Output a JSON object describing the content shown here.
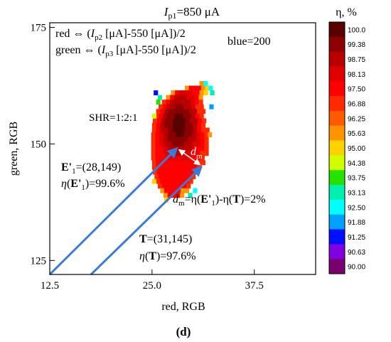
{
  "chart_data": {
    "type": "heatmap",
    "title": "I_p1=850 μA",
    "title_parts": {
      "main": "I",
      "sub": "p1",
      "rest": "=850 μA"
    },
    "xlabel": "red, RGB",
    "ylabel": "green, RGB",
    "xlim": [
      12.5,
      45
    ],
    "ylim": [
      122,
      176
    ],
    "x_ticks": [
      "12.5",
      "25.0",
      "37.5"
    ],
    "x_tick_values": [
      12.5,
      25.0,
      37.5
    ],
    "y_ticks": [
      "125",
      "150",
      "175"
    ],
    "y_tick_values": [
      125,
      150,
      175
    ],
    "grid": false,
    "legend_title": "η, %",
    "colorbar_labels": [
      "100.0",
      "99.38",
      "98.75",
      "98.13",
      "97.50",
      "96.88",
      "96.25",
      "95.63",
      "95.00",
      "94.38",
      "93.75",
      "93.13",
      "92.50",
      "91.88",
      "91.25",
      "90.63",
      "90.00"
    ],
    "colorbar_colors": [
      "#5a0000",
      "#8b0000",
      "#b80000",
      "#e00000",
      "#ff0000",
      "#ff2a00",
      "#ff5a00",
      "#ff9400",
      "#ffd200",
      "#d2ff00",
      "#23e400",
      "#00f0b0",
      "#00ffff",
      "#00a0ff",
      "#0010ff",
      "#8000e0",
      "#7a0070"
    ],
    "annotations": {
      "formula_red": {
        "pre": "red ⇔ (",
        "I": "I",
        "sub": "p2",
        "post": " [μA]-550 [μA])/2"
      },
      "formula_green": {
        "pre": "green ⇔ (",
        "I": "I",
        "sub": "p3",
        "post": " [μA]-550 [μA])/2"
      },
      "blue": "blue=200",
      "shr": "SHR=1:2:1",
      "e1_coord": {
        "bold": "E'",
        "sub": "1",
        "rest": "=(28,149)"
      },
      "e1_eta": {
        "eta": "η",
        "open": "(",
        "bold": "E'",
        "sub": "1",
        "rest": ")=99.6%"
      },
      "dm_label": {
        "d": "d",
        "sub": "m"
      },
      "dm_formula": {
        "d": "d",
        "sub": "m",
        "eq1": "=η(",
        "bold1": "E'",
        "sub1": "1",
        "mid": ")-η(",
        "bold2": "T",
        "end": ")=2%"
      },
      "t_coord": {
        "bold": "T",
        "rest": "=(31,145)"
      },
      "t_eta": {
        "eta": "η",
        "open": "(",
        "bold": "T",
        "rest": ")=97.6%"
      }
    },
    "points": {
      "E1": {
        "x": 28,
        "y": 149
      },
      "T": {
        "x": 31,
        "y": 145
      }
    },
    "region_rows": [
      {
        "y": 163,
        "x0": 30.8,
        "x1": 31.8
      },
      {
        "y": 162,
        "x0": 29.0,
        "x1": 31.6
      },
      {
        "y": 161,
        "x0": 27.3,
        "x1": 31.4
      },
      {
        "y": 160,
        "x0": 26.7,
        "x1": 31.2
      },
      {
        "y": 159,
        "x0": 26.2,
        "x1": 31.0
      },
      {
        "y": 158,
        "x0": 25.8,
        "x1": 31.0
      },
      {
        "y": 157,
        "x0": 25.5,
        "x1": 31.2
      },
      {
        "y": 156,
        "x0": 25.3,
        "x1": 31.3
      },
      {
        "y": 155,
        "x0": 25.1,
        "x1": 31.4
      },
      {
        "y": 154,
        "x0": 25.0,
        "x1": 31.5
      },
      {
        "y": 153,
        "x0": 25.0,
        "x1": 31.6
      },
      {
        "y": 152,
        "x0": 24.9,
        "x1": 31.7
      },
      {
        "y": 151,
        "x0": 24.9,
        "x1": 31.7
      },
      {
        "y": 150,
        "x0": 24.9,
        "x1": 31.7
      },
      {
        "y": 149,
        "x0": 24.9,
        "x1": 31.6
      },
      {
        "y": 148,
        "x0": 24.9,
        "x1": 31.5
      },
      {
        "y": 147,
        "x0": 24.9,
        "x1": 31.3
      },
      {
        "y": 146,
        "x0": 25.0,
        "x1": 31.1
      },
      {
        "y": 145,
        "x0": 25.0,
        "x1": 30.8
      },
      {
        "y": 144,
        "x0": 25.1,
        "x1": 30.5
      },
      {
        "y": 143,
        "x0": 25.3,
        "x1": 30.2
      },
      {
        "y": 142,
        "x0": 25.5,
        "x1": 29.9
      },
      {
        "y": 141,
        "x0": 25.7,
        "x1": 29.6
      },
      {
        "y": 140,
        "x0": 26.0,
        "x1": 29.2
      },
      {
        "y": 139,
        "x0": 26.4,
        "x1": 28.8
      }
    ],
    "peak": {
      "x": 28.3,
      "y": 154
    }
  },
  "caption": "(d)"
}
